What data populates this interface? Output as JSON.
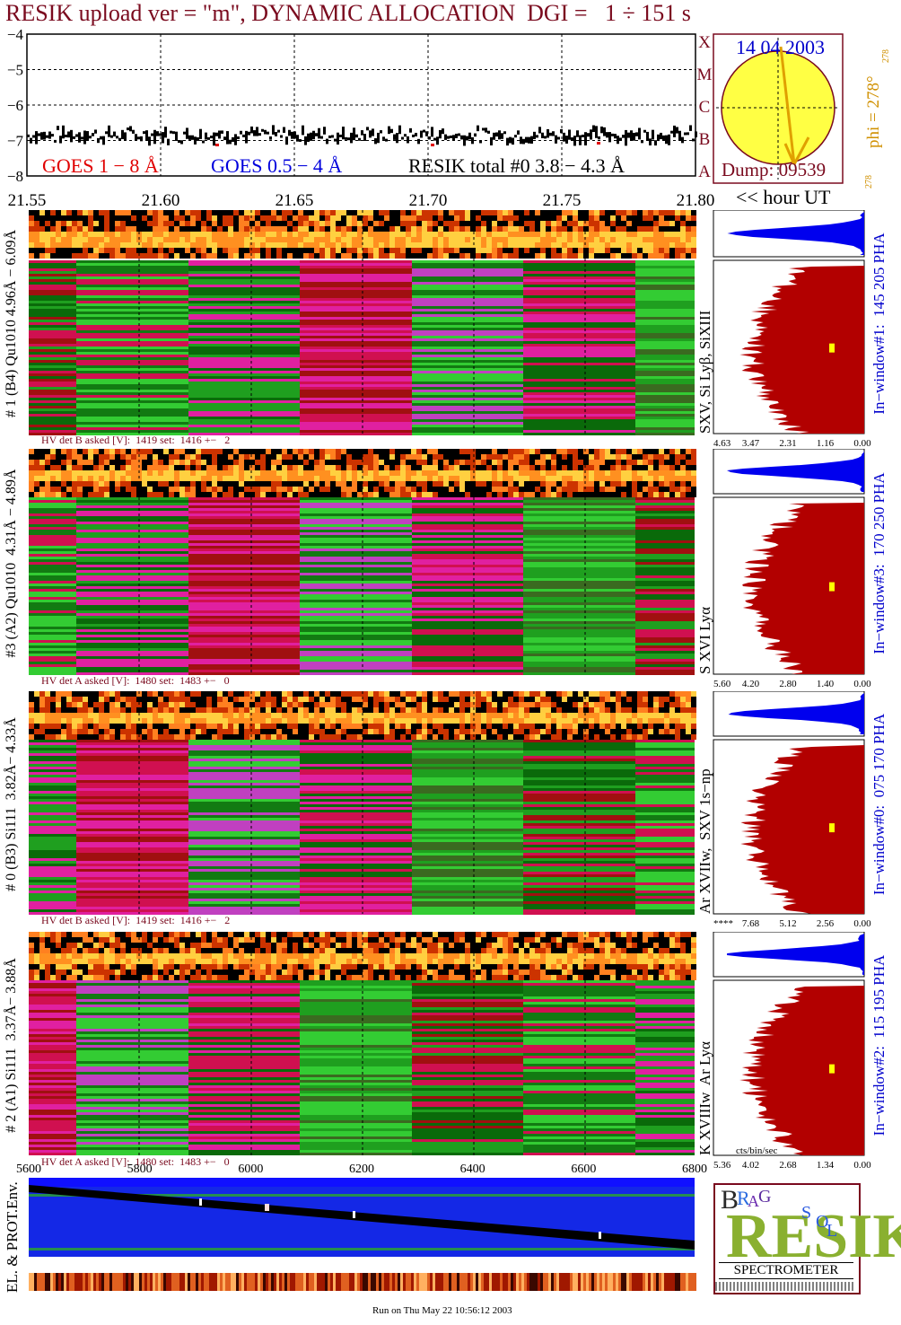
{
  "title": "RESIK upload ver = \"m\", DYNAMIC ALLOCATION  DGI =   1 ÷ 151 s",
  "chart_data": [
    {
      "type": "line",
      "name": "light curves",
      "ylim": [
        -8,
        -4
      ],
      "yticks": [
        "−4",
        "−5",
        "−6",
        "−7",
        "−8"
      ],
      "xlim": [
        21.55,
        21.8
      ],
      "xticks": [
        "21.55",
        "21.60",
        "21.65",
        "21.70",
        "21.75",
        "21.80"
      ],
      "xlabel": "<< hour UT",
      "legend": [
        {
          "text": "GOES 1 − 8 Å",
          "color": "#e00000"
        },
        {
          "text": "GOES 0.5 − 4 Å",
          "color": "#0000dd"
        },
        {
          "text": "RESIK total #0  3.8 − 4.3 Å",
          "color": "#000000"
        }
      ],
      "series": [
        {
          "name": "RESIK total #0  3.8 − 4.3 Å",
          "mean": -6.85,
          "spread": 0.3
        }
      ]
    },
    {
      "type": "heatmap",
      "name": "detector spectrograms",
      "panels": [
        {
          "id": "1",
          "ylabel": "# 1 (B4) Qu1010 4.96Å − 6.09Å",
          "lines": "SXV, Si Lyβ, SiXIII",
          "hv": "HV det B asked [V]:  1419 set:  1416 +−   2",
          "window": "In−window#1:  145 205 PHA",
          "pha_ticks": [
            "4.63",
            "3.47",
            "2.31",
            "1.16",
            "0.00"
          ]
        },
        {
          "id": "3",
          "ylabel": "#3 (A2) Qu1010  4.31Å − 4.89Å",
          "lines": "S XVI Lyα",
          "hv": "HV det A asked [V]:  1480 set:  1483 +−   0",
          "window": "In−window#3:  170 250 PHA",
          "pha_ticks": [
            "5.60",
            "4.20",
            "2.80",
            "1.40",
            "0.00"
          ]
        },
        {
          "id": "0",
          "ylabel": "# 0 (B3) Si111  3.82Å− 4.33Å",
          "lines": "Ar XVIIw,  SXV 1s−np",
          "hv": "HV det B asked [V]:  1419 set:  1416 +−   2",
          "window": "In−window#0:  075 170 PHA",
          "pha_ticks": [
            "****",
            "7.68",
            "5.12",
            "2.56",
            "0.00"
          ]
        },
        {
          "id": "2",
          "ylabel": "# 2 (A1) Si111  3.37Å− 3.88Å",
          "lines": "K XVIIIw  Ar Lyα",
          "hv": "HV det A asked [V]:  1480 set:  1483 +−   0",
          "window": "In−window#2:  115 195 PHA",
          "pha_ticks": [
            "5.36",
            "4.02",
            "2.68",
            "1.34",
            "0.00"
          ]
        }
      ]
    },
    {
      "type": "line",
      "name": "particle environment",
      "xlim": [
        5600,
        6800
      ],
      "xticks": [
        "5600",
        "5800",
        "6000",
        "6200",
        "6400",
        "6600",
        "6800"
      ],
      "ylabel": "EL. & PROT.Env.",
      "pha_unit": "cts/bin/sec"
    }
  ],
  "sun": {
    "date": "14 04 2003",
    "phi": "phi = 278°",
    "phi_small_1": "278",
    "phi_small_2": "278",
    "dump": "Dump: 09539",
    "goes_classes": [
      "X",
      "M",
      "C",
      "B",
      "A"
    ]
  },
  "logo": {
    "letters": "RESIK",
    "b": "B",
    "r": "R",
    "a": "A",
    "g": "G",
    "s": "S",
    "o": "O",
    "l": "L",
    "sub": "SPECTROMETER"
  },
  "colors": {
    "goes_long": "#e00000",
    "goes_short": "#0000dd",
    "title": "#7a0a1e",
    "spectrum": "#b20000",
    "pha": "#0000ee",
    "sun": "#ffff44"
  },
  "footer": "Run on Thu May 22 10:56:12 2003"
}
